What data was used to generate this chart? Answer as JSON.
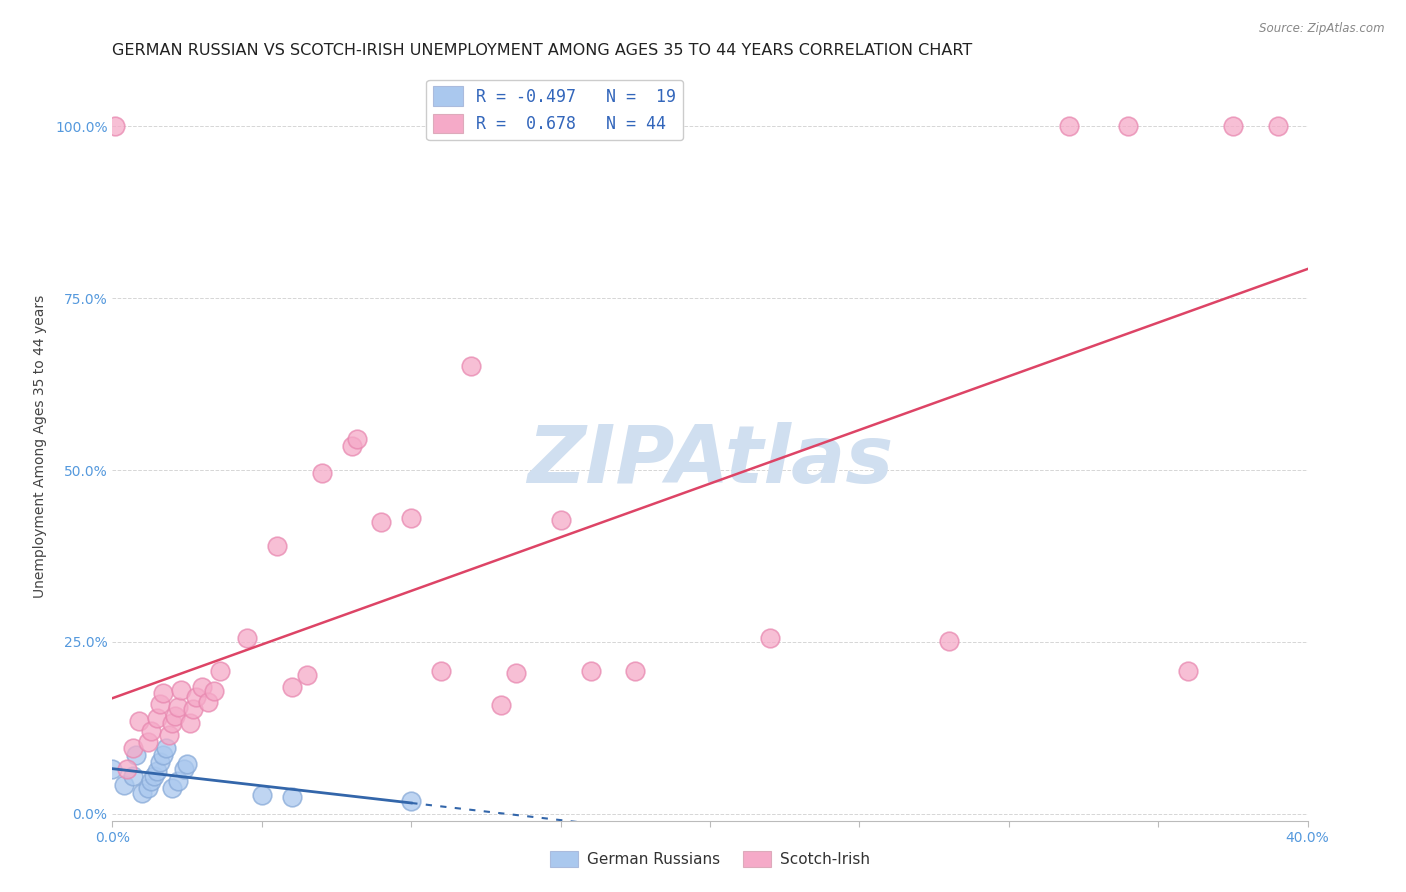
{
  "title": "GERMAN RUSSIAN VS SCOTCH-IRISH UNEMPLOYMENT AMONG AGES 35 TO 44 YEARS CORRELATION CHART",
  "source": "Source: ZipAtlas.com",
  "ylabel": "Unemployment Among Ages 35 to 44 years",
  "xlim": [
    0.0,
    0.4
  ],
  "ylim": [
    -0.01,
    1.08
  ],
  "yticks": [
    0.0,
    0.25,
    0.5,
    0.75,
    1.0
  ],
  "ytick_labels": [
    "0.0%",
    "25.0%",
    "50.0%",
    "75.0%",
    "100.0%"
  ],
  "xticks": [
    0.0,
    0.05,
    0.1,
    0.15,
    0.2,
    0.25,
    0.3,
    0.35,
    0.4
  ],
  "xtick_labels": [
    "0.0%",
    "",
    "",
    "",
    "",
    "",
    "",
    "",
    "40.0%"
  ],
  "background_color": "#ffffff",
  "grid_color": "#cccccc",
  "title_fontsize": 11.5,
  "axis_label_fontsize": 10,
  "tick_color": "#5599dd",
  "german_russian_fill": "#aac8ee",
  "german_russian_edge": "#88aad8",
  "scotch_irish_fill": "#f5aac8",
  "scotch_irish_edge": "#e888b0",
  "german_russian_line_color": "#3366aa",
  "scotch_irish_line_color": "#dd4466",
  "watermark_color": "#d0dff0",
  "legend_box_color": "#f0f0f0",
  "legend_box_edge": "#cccccc",
  "legend_blue_fill": "#aac8ee",
  "legend_pink_fill": "#f5aac8",
  "legend_text_color": "#3366bb",
  "legend_label1": "R = -0.497   N =  19",
  "legend_label2": "R =  0.678   N = 44",
  "bottom_label1": "German Russians",
  "bottom_label2": "Scotch-Irish",
  "german_russian_points": [
    [
      0.0,
      0.065
    ],
    [
      0.004,
      0.042
    ],
    [
      0.007,
      0.055
    ],
    [
      0.008,
      0.085
    ],
    [
      0.01,
      0.03
    ],
    [
      0.012,
      0.038
    ],
    [
      0.013,
      0.048
    ],
    [
      0.014,
      0.055
    ],
    [
      0.015,
      0.062
    ],
    [
      0.016,
      0.075
    ],
    [
      0.017,
      0.085
    ],
    [
      0.018,
      0.095
    ],
    [
      0.02,
      0.038
    ],
    [
      0.022,
      0.048
    ],
    [
      0.024,
      0.065
    ],
    [
      0.025,
      0.072
    ],
    [
      0.05,
      0.028
    ],
    [
      0.06,
      0.025
    ],
    [
      0.1,
      0.018
    ]
  ],
  "scotch_irish_points": [
    [
      0.001,
      1.0
    ],
    [
      0.005,
      0.065
    ],
    [
      0.007,
      0.095
    ],
    [
      0.009,
      0.135
    ],
    [
      0.012,
      0.105
    ],
    [
      0.013,
      0.12
    ],
    [
      0.015,
      0.14
    ],
    [
      0.016,
      0.16
    ],
    [
      0.017,
      0.175
    ],
    [
      0.019,
      0.115
    ],
    [
      0.02,
      0.132
    ],
    [
      0.021,
      0.142
    ],
    [
      0.022,
      0.155
    ],
    [
      0.023,
      0.18
    ],
    [
      0.026,
      0.132
    ],
    [
      0.027,
      0.152
    ],
    [
      0.028,
      0.17
    ],
    [
      0.03,
      0.185
    ],
    [
      0.032,
      0.162
    ],
    [
      0.034,
      0.178
    ],
    [
      0.036,
      0.208
    ],
    [
      0.045,
      0.255
    ],
    [
      0.055,
      0.39
    ],
    [
      0.06,
      0.185
    ],
    [
      0.065,
      0.202
    ],
    [
      0.07,
      0.495
    ],
    [
      0.08,
      0.535
    ],
    [
      0.082,
      0.545
    ],
    [
      0.09,
      0.425
    ],
    [
      0.1,
      0.43
    ],
    [
      0.11,
      0.208
    ],
    [
      0.12,
      0.652
    ],
    [
      0.13,
      0.158
    ],
    [
      0.135,
      0.205
    ],
    [
      0.15,
      0.428
    ],
    [
      0.16,
      0.208
    ],
    [
      0.175,
      0.208
    ],
    [
      0.22,
      0.255
    ],
    [
      0.28,
      0.252
    ],
    [
      0.32,
      1.0
    ],
    [
      0.34,
      1.0
    ],
    [
      0.36,
      0.208
    ],
    [
      0.375,
      1.0
    ],
    [
      0.39,
      1.0
    ]
  ]
}
